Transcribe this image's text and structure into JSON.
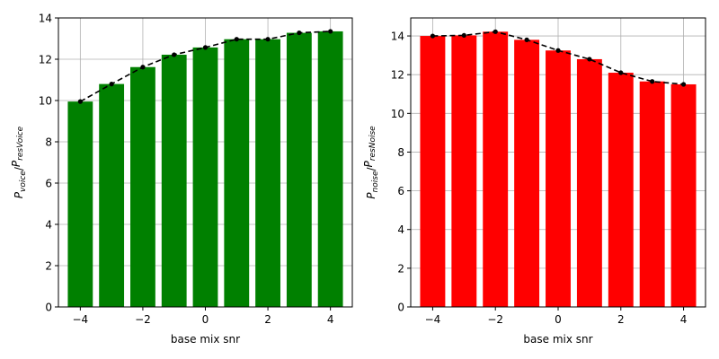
{
  "chart_data": [
    {
      "type": "bar",
      "x": [
        -4,
        -3,
        -2,
        -1,
        0,
        1,
        2,
        3,
        4
      ],
      "values": [
        9.95,
        10.8,
        11.62,
        12.22,
        12.57,
        12.97,
        12.97,
        13.28,
        13.35
      ],
      "bar_color": "#008000",
      "overlay": {
        "style": "dashed-line-with-markers",
        "color": "#000000"
      },
      "xlabel": "base mix snr",
      "ylabel_main": "P",
      "ylabel_sub_top": "voice",
      "ylabel_sub_bottom": "resVoice",
      "xlim": [
        -4.7,
        4.7
      ],
      "ylim": [
        0,
        14
      ],
      "xticks": [
        -4,
        -2,
        0,
        2,
        4
      ],
      "yticks": [
        0,
        2,
        4,
        6,
        8,
        10,
        12,
        14
      ],
      "grid": true
    },
    {
      "type": "bar",
      "x": [
        -4,
        -3,
        -2,
        -1,
        0,
        1,
        2,
        3,
        4
      ],
      "values": [
        14.0,
        14.03,
        14.22,
        13.8,
        13.25,
        12.8,
        12.1,
        11.65,
        11.5
      ],
      "bar_color": "#ff0000",
      "overlay": {
        "style": "dashed-line-with-markers",
        "color": "#000000"
      },
      "xlabel": "base mix snr",
      "ylabel_main": "P",
      "ylabel_sub_top": "noise",
      "ylabel_sub_bottom": "resNoise",
      "xlim": [
        -4.7,
        4.7
      ],
      "ylim": [
        0,
        14.93
      ],
      "xticks": [
        -4,
        -2,
        0,
        2,
        4
      ],
      "yticks": [
        0,
        2,
        4,
        6,
        8,
        10,
        12,
        14
      ],
      "grid": true
    }
  ]
}
